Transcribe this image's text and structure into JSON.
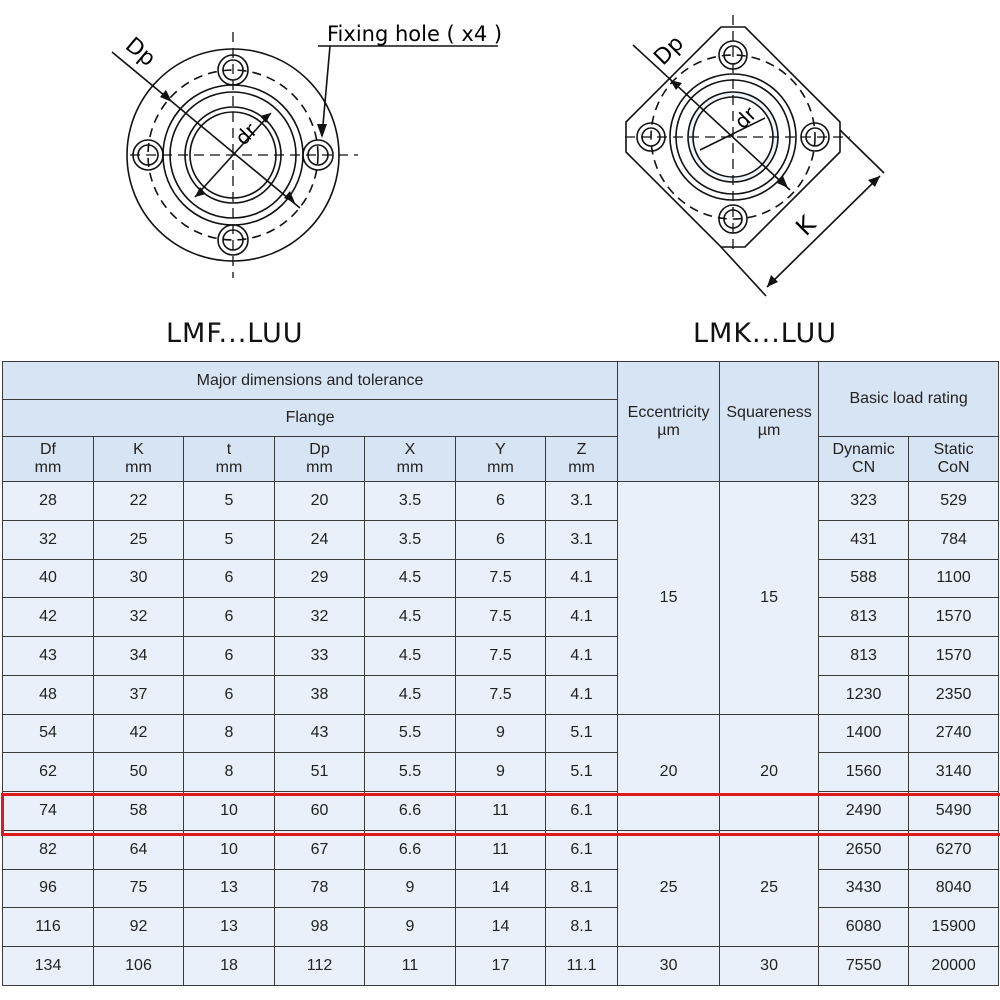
{
  "diagrams": {
    "left": {
      "caption": "LMF...LUU",
      "fixing_hole_label": "Fixing hole ( x4 )",
      "dp_label": "Dp",
      "dr_label": "dr"
    },
    "right": {
      "caption": "LMK...LUU",
      "dp_label": "Dp",
      "dr_label": "dr",
      "k_label": "K"
    }
  },
  "table": {
    "header": {
      "major": "Major dimensions and tolerance",
      "flange": "Flange",
      "eccentricity": "Eccentricity",
      "eccentricity_unit": "µm",
      "squareness": "Squareness",
      "squareness_unit": "µm",
      "load_rating": "Basic load rating",
      "columns": [
        {
          "name": "Df",
          "unit": "mm"
        },
        {
          "name": "K",
          "unit": "mm"
        },
        {
          "name": "t",
          "unit": "mm"
        },
        {
          "name": "Dp",
          "unit": "mm"
        },
        {
          "name": "X",
          "unit": "mm"
        },
        {
          "name": "Y",
          "unit": "mm"
        },
        {
          "name": "Z",
          "unit": "mm"
        }
      ],
      "dynamic": "Dynamic",
      "dynamic_unit": "CN",
      "static": "Static",
      "static_unit": "CoN"
    },
    "rows": [
      [
        "28",
        "22",
        "5",
        "20",
        "3.5",
        "6",
        "3.1",
        "323",
        "529"
      ],
      [
        "32",
        "25",
        "5",
        "24",
        "3.5",
        "6",
        "3.1",
        "431",
        "784"
      ],
      [
        "40",
        "30",
        "6",
        "29",
        "4.5",
        "7.5",
        "4.1",
        "588",
        "1100"
      ],
      [
        "42",
        "32",
        "6",
        "32",
        "4.5",
        "7.5",
        "4.1",
        "813",
        "1570"
      ],
      [
        "43",
        "34",
        "6",
        "33",
        "4.5",
        "7.5",
        "4.1",
        "813",
        "1570"
      ],
      [
        "48",
        "37",
        "6",
        "38",
        "4.5",
        "7.5",
        "4.1",
        "1230",
        "2350"
      ],
      [
        "54",
        "42",
        "8",
        "43",
        "5.5",
        "9",
        "5.1",
        "1400",
        "2740"
      ],
      [
        "62",
        "50",
        "8",
        "51",
        "5.5",
        "9",
        "5.1",
        "1560",
        "3140"
      ],
      [
        "74",
        "58",
        "10",
        "60",
        "6.6",
        "11",
        "6.1",
        "2490",
        "5490"
      ],
      [
        "82",
        "64",
        "10",
        "67",
        "6.6",
        "11",
        "6.1",
        "2650",
        "6270"
      ],
      [
        "96",
        "75",
        "13",
        "78",
        "9",
        "14",
        "8.1",
        "3430",
        "8040"
      ],
      [
        "116",
        "92",
        "13",
        "98",
        "9",
        "14",
        "8.1",
        "6080",
        "15900"
      ],
      [
        "134",
        "106",
        "18",
        "112",
        "11",
        "17",
        "11.1",
        "7550",
        "20000"
      ]
    ],
    "tolerance_groups": [
      {
        "start": 0,
        "span": 6,
        "eccentricity": "15",
        "squareness": "15"
      },
      {
        "start": 6,
        "span": 3,
        "eccentricity": "20",
        "squareness": "20"
      },
      {
        "start": 9,
        "span": 3,
        "eccentricity": "25",
        "squareness": "25"
      },
      {
        "start": 12,
        "span": 1,
        "eccentricity": "30",
        "squareness": "30"
      }
    ],
    "highlighted_row": 8,
    "highlight_color": "#dd1a1f",
    "header_bg": "#d7e4f4",
    "body_bg": "#e9f0f9"
  }
}
